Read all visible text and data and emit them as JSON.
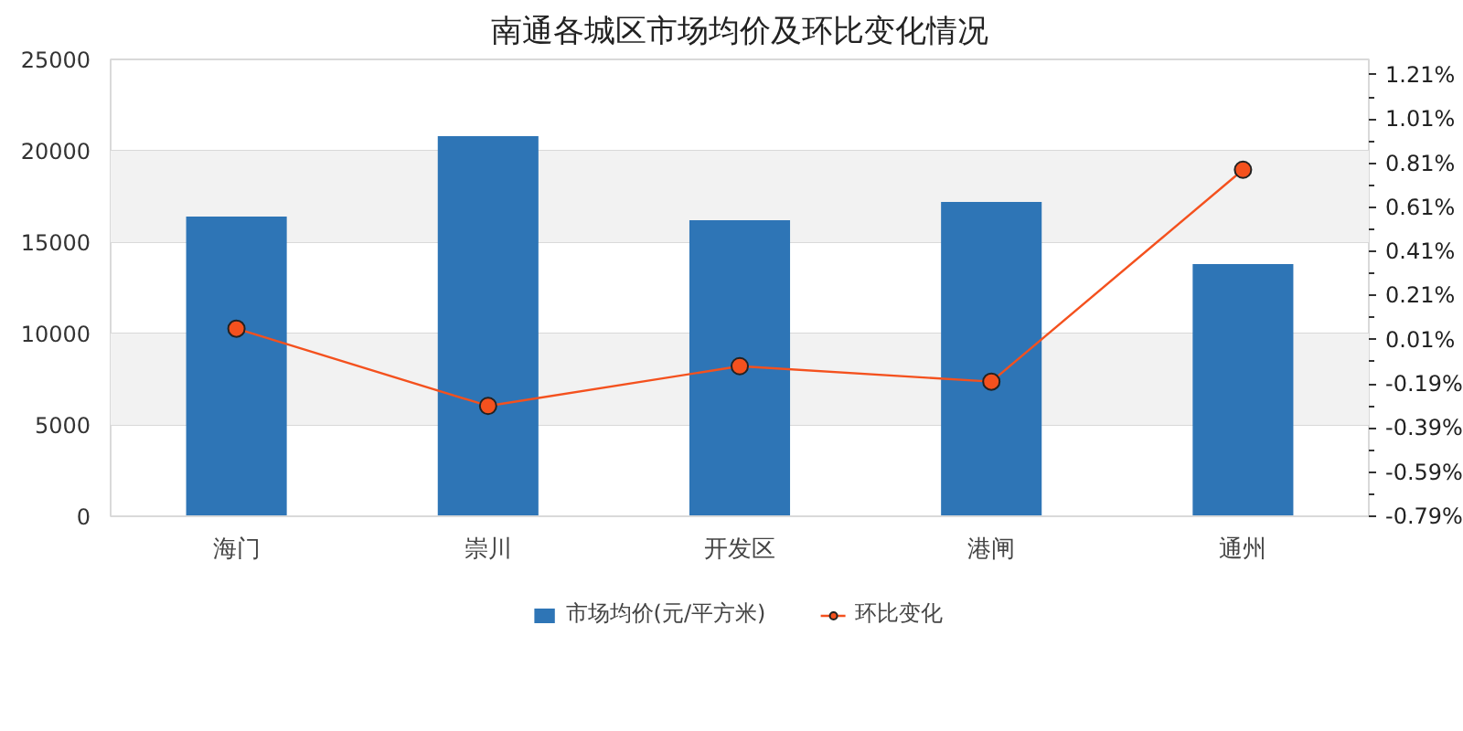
{
  "chart_data": {
    "type": "bar",
    "title": "南通各城区市场均价及环比变化情况",
    "categories": [
      "海门",
      "崇川",
      "开发区",
      "港闸",
      "通州"
    ],
    "series": [
      {
        "name": "市场均价(元/平方米)",
        "type": "bar",
        "color": "#2e75b6",
        "values": [
          16400,
          20800,
          16200,
          17200,
          13800
        ]
      },
      {
        "name": "环比变化",
        "type": "line",
        "axis": "y2",
        "color": "#f4511e",
        "marker": "circle",
        "values": [
          0.06,
          -0.29,
          -0.11,
          -0.18,
          0.78
        ]
      }
    ],
    "ylim": [
      0,
      25000
    ],
    "yticks": [
      0,
      5000,
      10000,
      15000,
      20000,
      25000
    ],
    "y2lim": [
      -0.79,
      1.28
    ],
    "y2ticks": [
      {
        "value": -0.79,
        "label": "-0.79%"
      },
      {
        "value": -0.59,
        "label": "-0.59%"
      },
      {
        "value": -0.39,
        "label": "-0.39%"
      },
      {
        "value": -0.19,
        "label": "-0.19%"
      },
      {
        "value": 0.01,
        "label": "0.01%"
      },
      {
        "value": 0.21,
        "label": "0.21%"
      },
      {
        "value": 0.41,
        "label": "0.41%"
      },
      {
        "value": 0.61,
        "label": "0.61%"
      },
      {
        "value": 0.81,
        "label": "0.81%"
      },
      {
        "value": 1.01,
        "label": "1.01%"
      },
      {
        "value": 1.21,
        "label": "1.21%"
      }
    ],
    "bands": [
      {
        "axis": "y",
        "from": 5000,
        "to": 10000,
        "color": "#f2f2f2"
      },
      {
        "axis": "y",
        "from": 15000,
        "to": 20000,
        "color": "#f2f2f2"
      }
    ],
    "grid": "y",
    "legend": "bottom"
  }
}
